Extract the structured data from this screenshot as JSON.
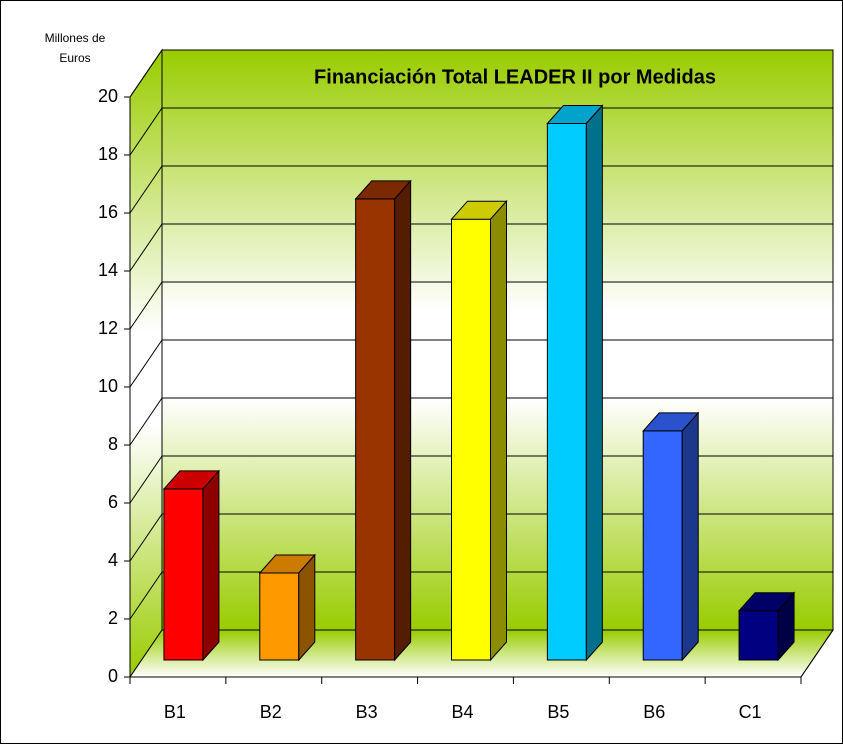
{
  "chart_data": {
    "type": "bar3d",
    "title": "Financiación Total LEADER II por Medidas",
    "y_label": "Millones de Euros",
    "categories": [
      "B1",
      "B2",
      "B3",
      "B4",
      "B5",
      "B6",
      "C1"
    ],
    "values": [
      5.9,
      3.0,
      15.9,
      15.2,
      18.5,
      7.9,
      1.7
    ],
    "colors": [
      "#ff0000",
      "#ff9900",
      "#993300",
      "#ffff00",
      "#00ccff",
      "#3366ff",
      "#000080"
    ],
    "ylim": [
      0,
      20
    ],
    "yticks": [
      0,
      2,
      4,
      6,
      8,
      10,
      12,
      14,
      16,
      18,
      20
    ],
    "grid": true
  }
}
